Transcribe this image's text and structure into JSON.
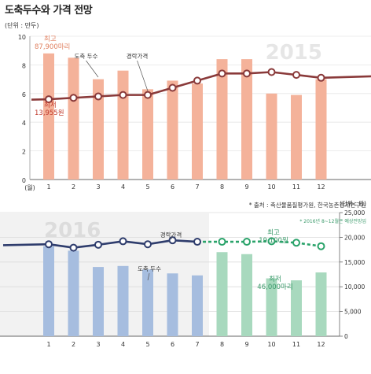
{
  "page": {
    "title": "도축두수와 가격 전망",
    "source": "* 출처 : 축산물품질평가원, 한국농촌경제연구원"
  },
  "chart_data": [
    {
      "type": "bar",
      "year_label": "2015",
      "categories": [
        "1",
        "2",
        "3",
        "4",
        "5",
        "6",
        "7",
        "8",
        "9",
        "10",
        "11",
        "12"
      ],
      "x_unit": "(월)",
      "y_unit_label": "(단위 : 만두)",
      "ylim": [
        0,
        10
      ],
      "yticks": [
        "0",
        "2",
        "4",
        "6",
        "8",
        "10"
      ],
      "series": [
        {
          "name": "도축 두수",
          "type": "bar",
          "color": "#f4b29a",
          "values": [
            8.8,
            8.5,
            7.0,
            7.6,
            6.3,
            6.9,
            6.7,
            8.4,
            8.4,
            6.0,
            5.9,
            7.0
          ]
        },
        {
          "name": "경락가격",
          "type": "line",
          "color": "#8a3a3a",
          "values": [
            5.6,
            5.7,
            5.8,
            5.9,
            5.9,
            6.4,
            6.9,
            7.4,
            7.4,
            7.5,
            7.3,
            7.1
          ]
        }
      ],
      "annotations": [
        {
          "label": "최고",
          "value": "87,900마리",
          "color": "#e08060"
        },
        {
          "label": "최저",
          "value": "13,955원",
          "color": "#c0392b"
        }
      ]
    },
    {
      "type": "bar",
      "year_label": "2016",
      "categories": [
        "1",
        "2",
        "3",
        "4",
        "5",
        "6",
        "7",
        "8",
        "9",
        "10",
        "11",
        "12"
      ],
      "y_unit_label": "(단위 : 원)",
      "ylim": [
        0,
        25000
      ],
      "yticks": [
        "0",
        "5,000",
        "10,000",
        "15,000",
        "20,000",
        "25,000"
      ],
      "projection_note": "* 2016년 8~12월은 예상전망임",
      "series": [
        {
          "name": "도축 두수",
          "type": "bar",
          "colors": {
            "actual": "#a6bddf",
            "forecast": "#a8d9be"
          },
          "values": [
            18.2,
            17.3,
            14.0,
            14.2,
            13.5,
            12.7,
            12.3,
            17.0,
            16.6,
            11.7,
            11.3,
            12.9
          ]
        },
        {
          "name": "경락가격",
          "type": "line",
          "colors": {
            "actual": "#2f3d6d",
            "forecast": "#2aa36a"
          },
          "values": [
            18.6,
            17.9,
            18.5,
            19.2,
            18.6,
            19.4,
            19.1,
            19.1,
            19.1,
            19.2,
            18.9,
            18.2
          ]
        }
      ],
      "annotations": [
        {
          "label": "최고",
          "value": "19,100원",
          "color": "#3a9a6a"
        },
        {
          "label": "최저",
          "value": "46,000마리",
          "color": "#3a9a6a"
        }
      ]
    }
  ]
}
